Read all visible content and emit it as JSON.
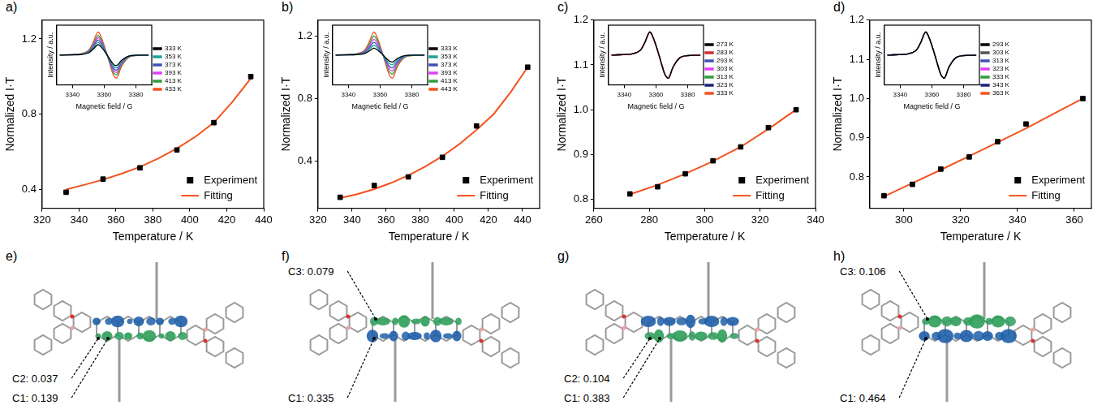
{
  "chart_data": [
    {
      "panel": "a)",
      "type": "scatter",
      "x_label": "Temperature / K",
      "y_label": "Normalized I·T",
      "xlim": [
        320,
        440
      ],
      "xticks": [
        320,
        340,
        360,
        380,
        400,
        420,
        440
      ],
      "ylim": [
        0.3,
        1.3
      ],
      "yticks": [
        0.4,
        0.8,
        1.2
      ],
      "grid": false,
      "legend": "bottom-right",
      "series": [
        {
          "name": "Experiment",
          "color": "#000000",
          "marker": "square",
          "x": [
            333,
            353,
            373,
            393,
            413,
            433
          ],
          "values": [
            0.385,
            0.455,
            0.515,
            0.61,
            0.755,
            1.0
          ]
        },
        {
          "name": "Fitting",
          "type": "line",
          "color": "#f4511e",
          "line_style": "solid",
          "x": [
            333,
            343,
            353,
            363,
            373,
            383,
            393,
            403,
            413,
            423,
            433
          ],
          "values": [
            0.4,
            0.425,
            0.452,
            0.484,
            0.52,
            0.565,
            0.618,
            0.68,
            0.755,
            0.865,
            0.99
          ]
        }
      ],
      "inset": {
        "type": "line",
        "x_label": "Magnetic field / G",
        "y_label": "Intensity / a.u.",
        "xlim": [
          3330,
          3390
        ],
        "xticks": [
          3340,
          3360,
          3380
        ],
        "ylim": [
          -1.3,
          1.3
        ],
        "tick_labels": "x",
        "legend": "right",
        "x": [
          3332,
          3345,
          3350,
          3353,
          3356,
          3358,
          3361,
          3364,
          3366,
          3368,
          3371,
          3376,
          3388
        ],
        "series": [
          {
            "name": "333 K",
            "color": "#000000",
            "values": [
              0,
              0.02,
              0.09,
              0.25,
              0.45,
              0.36,
              0.09,
              -0.23,
              -0.41,
              -0.45,
              -0.23,
              -0.04,
              0
            ]
          },
          {
            "name": "353 K",
            "color": "#1aa39a",
            "values": [
              0,
              0.03,
              0.11,
              0.3,
              0.55,
              0.44,
              0.11,
              -0.28,
              -0.5,
              -0.55,
              -0.28,
              -0.04,
              0
            ]
          },
          {
            "name": "373 K",
            "color": "#3f51b5",
            "values": [
              0,
              0.03,
              0.13,
              0.36,
              0.65,
              0.52,
              0.13,
              -0.33,
              -0.59,
              -0.65,
              -0.33,
              -0.05,
              0
            ]
          },
          {
            "name": "393 K",
            "color": "#e040fb",
            "values": [
              0,
              0.04,
              0.15,
              0.41,
              0.75,
              0.6,
              0.15,
              -0.38,
              -0.68,
              -0.75,
              -0.38,
              -0.06,
              0
            ]
          },
          {
            "name": "413 K",
            "color": "#2e9e3e",
            "values": [
              0,
              0.04,
              0.17,
              0.47,
              0.85,
              0.68,
              0.17,
              -0.43,
              -0.77,
              -0.85,
              -0.43,
              -0.07,
              0
            ]
          },
          {
            "name": "433 K",
            "color": "#f4511e",
            "values": [
              0,
              0.05,
              0.2,
              0.55,
              1.0,
              0.8,
              0.2,
              -0.5,
              -0.9,
              -1.0,
              -0.5,
              -0.08,
              0
            ]
          }
        ]
      }
    },
    {
      "panel": "b)",
      "type": "scatter",
      "x_label": "Temperature / K",
      "y_label": "Normalized I·T",
      "xlim": [
        320,
        450
      ],
      "xticks": [
        320,
        340,
        360,
        380,
        400,
        420,
        440
      ],
      "ylim": [
        0.1,
        1.3
      ],
      "yticks": [
        0.4,
        0.8,
        1.2
      ],
      "grid": false,
      "legend": "bottom-right",
      "series": [
        {
          "name": "Experiment",
          "color": "#000000",
          "marker": "square",
          "x": [
            333,
            353,
            373,
            393,
            413,
            443
          ],
          "values": [
            0.17,
            0.245,
            0.3,
            0.425,
            0.625,
            1.0
          ]
        },
        {
          "name": "Fitting",
          "type": "line",
          "color": "#f4511e",
          "line_style": "solid",
          "x": [
            333,
            343,
            353,
            363,
            373,
            383,
            393,
            403,
            413,
            423,
            433,
            443
          ],
          "values": [
            0.165,
            0.19,
            0.222,
            0.262,
            0.31,
            0.367,
            0.432,
            0.51,
            0.6,
            0.7,
            0.84,
            1.0
          ]
        }
      ],
      "inset": {
        "type": "line",
        "x_label": "Magnetic field / G",
        "y_label": "Intensity / a.u.",
        "xlim": [
          3330,
          3390
        ],
        "xticks": [
          3340,
          3360,
          3380
        ],
        "ylim": [
          -1.3,
          1.3
        ],
        "tick_labels": "x",
        "legend": "right",
        "x": [
          3332,
          3345,
          3350,
          3353,
          3356,
          3358,
          3361,
          3364,
          3366,
          3368,
          3371,
          3376,
          3388
        ],
        "series": [
          {
            "name": "333 K",
            "color": "#000000",
            "values": [
              0,
              0.02,
              0.06,
              0.17,
              0.3,
              0.24,
              0.06,
              -0.15,
              -0.27,
              -0.3,
              -0.15,
              -0.02,
              0
            ]
          },
          {
            "name": "353 K",
            "color": "#1aa39a",
            "values": [
              0,
              0.02,
              0.08,
              0.23,
              0.42,
              0.34,
              0.08,
              -0.21,
              -0.38,
              -0.42,
              -0.21,
              -0.03,
              0
            ]
          },
          {
            "name": "373 K",
            "color": "#3f51b5",
            "values": [
              0,
              0.03,
              0.11,
              0.3,
              0.55,
              0.44,
              0.11,
              -0.28,
              -0.5,
              -0.55,
              -0.28,
              -0.04,
              0
            ]
          },
          {
            "name": "393 K",
            "color": "#e040fb",
            "values": [
              0,
              0.03,
              0.14,
              0.37,
              0.68,
              0.54,
              0.14,
              -0.34,
              -0.61,
              -0.68,
              -0.34,
              -0.05,
              0
            ]
          },
          {
            "name": "413 K",
            "color": "#2e9e3e",
            "values": [
              0,
              0.04,
              0.16,
              0.45,
              0.82,
              0.66,
              0.16,
              -0.41,
              -0.74,
              -0.82,
              -0.41,
              -0.07,
              0
            ]
          },
          {
            "name": "443 K",
            "color": "#f4511e",
            "values": [
              0,
              0.05,
              0.2,
              0.55,
              1.0,
              0.8,
              0.2,
              -0.5,
              -0.9,
              -1.0,
              -0.5,
              -0.08,
              0
            ]
          }
        ]
      }
    },
    {
      "panel": "c)",
      "type": "scatter",
      "x_label": "Temperature / K",
      "y_label": "Normalized I·T",
      "xlim": [
        260,
        340
      ],
      "xticks": [
        260,
        280,
        300,
        320,
        340
      ],
      "ylim": [
        0.78,
        1.2
      ],
      "yticks": [
        0.8,
        0.9,
        {
          "value": 1,
          "label": "1.0"
        },
        1.1,
        1.2
      ],
      "grid": false,
      "legend": "bottom-right",
      "series": [
        {
          "name": "Experiment",
          "color": "#000000",
          "marker": "square",
          "x": [
            273,
            283,
            293,
            303,
            313,
            323,
            333
          ],
          "values": [
            0.812,
            0.828,
            0.857,
            0.886,
            0.917,
            0.96,
            1.0
          ]
        },
        {
          "name": "Fitting",
          "type": "line",
          "color": "#f4511e",
          "line_style": "solid",
          "x": [
            273,
            283,
            293,
            303,
            313,
            323,
            333
          ],
          "values": [
            0.811,
            0.832,
            0.857,
            0.885,
            0.917,
            0.957,
            1.0
          ]
        }
      ],
      "inset": {
        "type": "line",
        "x_label": "Magnetic field / G",
        "y_label": "Intensity / a.u.",
        "xlim": [
          3330,
          3390
        ],
        "xticks": [
          3340,
          3360,
          3380
        ],
        "ylim": [
          -1.3,
          1.3
        ],
        "tick_labels": "x",
        "legend": "right",
        "x": [
          3332,
          3345,
          3350,
          3353,
          3356,
          3358,
          3361,
          3364,
          3366,
          3368,
          3371,
          3376,
          3388
        ],
        "series": [
          {
            "name": "273 K",
            "color": "#000000",
            "values": [
              0,
              0.05,
              0.2,
              0.55,
              1.0,
              0.8,
              0.2,
              -0.5,
              -0.9,
              -1.0,
              -0.5,
              -0.08,
              0
            ]
          },
          {
            "name": "283 K",
            "color": "#d32f2f",
            "values": [
              0,
              0.05,
              0.2,
              0.55,
              1.0,
              0.8,
              0.2,
              -0.5,
              -0.9,
              -1.0,
              -0.5,
              -0.08,
              0
            ]
          },
          {
            "name": "293 K",
            "color": "#3f51b5",
            "values": [
              0,
              0.05,
              0.2,
              0.55,
              1.0,
              0.8,
              0.2,
              -0.5,
              -0.9,
              -1.0,
              -0.5,
              -0.08,
              0
            ]
          },
          {
            "name": "303 K",
            "color": "#e040fb",
            "values": [
              0,
              0.05,
              0.2,
              0.55,
              1.0,
              0.8,
              0.2,
              -0.5,
              -0.9,
              -1.0,
              -0.5,
              -0.08,
              0
            ]
          },
          {
            "name": "313 K",
            "color": "#2e9e3e",
            "values": [
              0,
              0.05,
              0.2,
              0.55,
              1.0,
              0.8,
              0.2,
              -0.5,
              -0.9,
              -1.0,
              -0.5,
              -0.08,
              0
            ]
          },
          {
            "name": "323 K",
            "color": "#1a237e",
            "values": [
              0,
              0.05,
              0.2,
              0.55,
              1.0,
              0.8,
              0.2,
              -0.5,
              -0.9,
              -1.0,
              -0.5,
              -0.08,
              0
            ]
          },
          {
            "name": "333 K",
            "color": "#f4511e",
            "values": [
              0,
              0.05,
              0.2,
              0.55,
              1.0,
              0.8,
              0.2,
              -0.5,
              -0.9,
              -1.0,
              -0.5,
              -0.08,
              0
            ]
          }
        ]
      }
    },
    {
      "panel": "d)",
      "type": "scatter",
      "x_label": "Temperature / K",
      "y_label": "Normalized I·T",
      "xlim": [
        288,
        366
      ],
      "xticks": [
        300,
        320,
        340,
        360
      ],
      "ylim": [
        0.72,
        1.2
      ],
      "yticks": [
        0.8,
        0.9,
        {
          "value": 1,
          "label": "1.0"
        },
        1.1,
        1.2
      ],
      "grid": false,
      "legend": "bottom-right",
      "series": [
        {
          "name": "Experiment",
          "color": "#000000",
          "marker": "square",
          "x": [
            293,
            303,
            313,
            323,
            333,
            343,
            363
          ],
          "values": [
            0.752,
            0.781,
            0.82,
            0.851,
            0.89,
            0.935,
            1.0
          ]
        },
        {
          "name": "Fitting",
          "type": "line",
          "color": "#f4511e",
          "line_style": "solid",
          "x": [
            293,
            303,
            313,
            323,
            333,
            343,
            353,
            363
          ],
          "values": [
            0.75,
            0.784,
            0.818,
            0.853,
            0.888,
            0.924,
            0.962,
            1.0
          ]
        }
      ],
      "inset": {
        "type": "line",
        "x_label": "Magnetic field / G",
        "y_label": "Intensity / a.u.",
        "xlim": [
          3330,
          3390
        ],
        "xticks": [
          3340,
          3360,
          3380
        ],
        "ylim": [
          -1.3,
          1.3
        ],
        "tick_labels": "x",
        "legend": "right",
        "x": [
          3332,
          3345,
          3350,
          3353,
          3356,
          3358,
          3361,
          3364,
          3366,
          3368,
          3371,
          3376,
          3388
        ],
        "series": [
          {
            "name": "293 K",
            "color": "#000000",
            "values": [
              0,
              0.05,
              0.2,
              0.55,
              1.0,
              0.8,
              0.2,
              -0.5,
              -0.9,
              -1.0,
              -0.5,
              -0.08,
              0
            ]
          },
          {
            "name": "303 K",
            "color": "#555555",
            "values": [
              0,
              0.05,
              0.2,
              0.55,
              1.0,
              0.8,
              0.2,
              -0.5,
              -0.9,
              -1.0,
              -0.5,
              -0.08,
              0
            ]
          },
          {
            "name": "313 K",
            "color": "#3f51b5",
            "values": [
              0,
              0.05,
              0.2,
              0.55,
              1.0,
              0.8,
              0.2,
              -0.5,
              -0.9,
              -1.0,
              -0.5,
              -0.08,
              0
            ]
          },
          {
            "name": "323 K",
            "color": "#e040fb",
            "values": [
              0,
              0.05,
              0.2,
              0.55,
              1.0,
              0.8,
              0.2,
              -0.5,
              -0.9,
              -1.0,
              -0.5,
              -0.08,
              0
            ]
          },
          {
            "name": "333 K",
            "color": "#2e9e3e",
            "values": [
              0,
              0.05,
              0.2,
              0.55,
              1.0,
              0.8,
              0.2,
              -0.5,
              -0.9,
              -1.0,
              -0.5,
              -0.08,
              0
            ]
          },
          {
            "name": "343 K",
            "color": "#1a237e",
            "values": [
              0,
              0.05,
              0.2,
              0.55,
              1.0,
              0.8,
              0.2,
              -0.5,
              -0.9,
              -1.0,
              -0.5,
              -0.08,
              0
            ]
          },
          {
            "name": "363 K",
            "color": "#f4511e",
            "values": [
              0,
              0.05,
              0.2,
              0.55,
              1.0,
              0.8,
              0.2,
              -0.5,
              -0.9,
              -1.0,
              -0.5,
              -0.08,
              0
            ]
          }
        ]
      }
    }
  ],
  "structures": [
    {
      "panel": "e)",
      "upper_labels": [],
      "lower_labels": [
        "C2: 0.037",
        "C1: 0.139"
      ]
    },
    {
      "panel": "f)",
      "upper_labels": [
        "C3: 0.079"
      ],
      "lower_labels": [
        "C1: 0.335"
      ]
    },
    {
      "panel": "g)",
      "upper_labels": [],
      "lower_labels": [
        "C2: 0.104",
        "C1: 0.383"
      ]
    },
    {
      "panel": "h)",
      "upper_labels": [
        "C3: 0.106"
      ],
      "lower_labels": [
        "C1: 0.464"
      ]
    }
  ]
}
